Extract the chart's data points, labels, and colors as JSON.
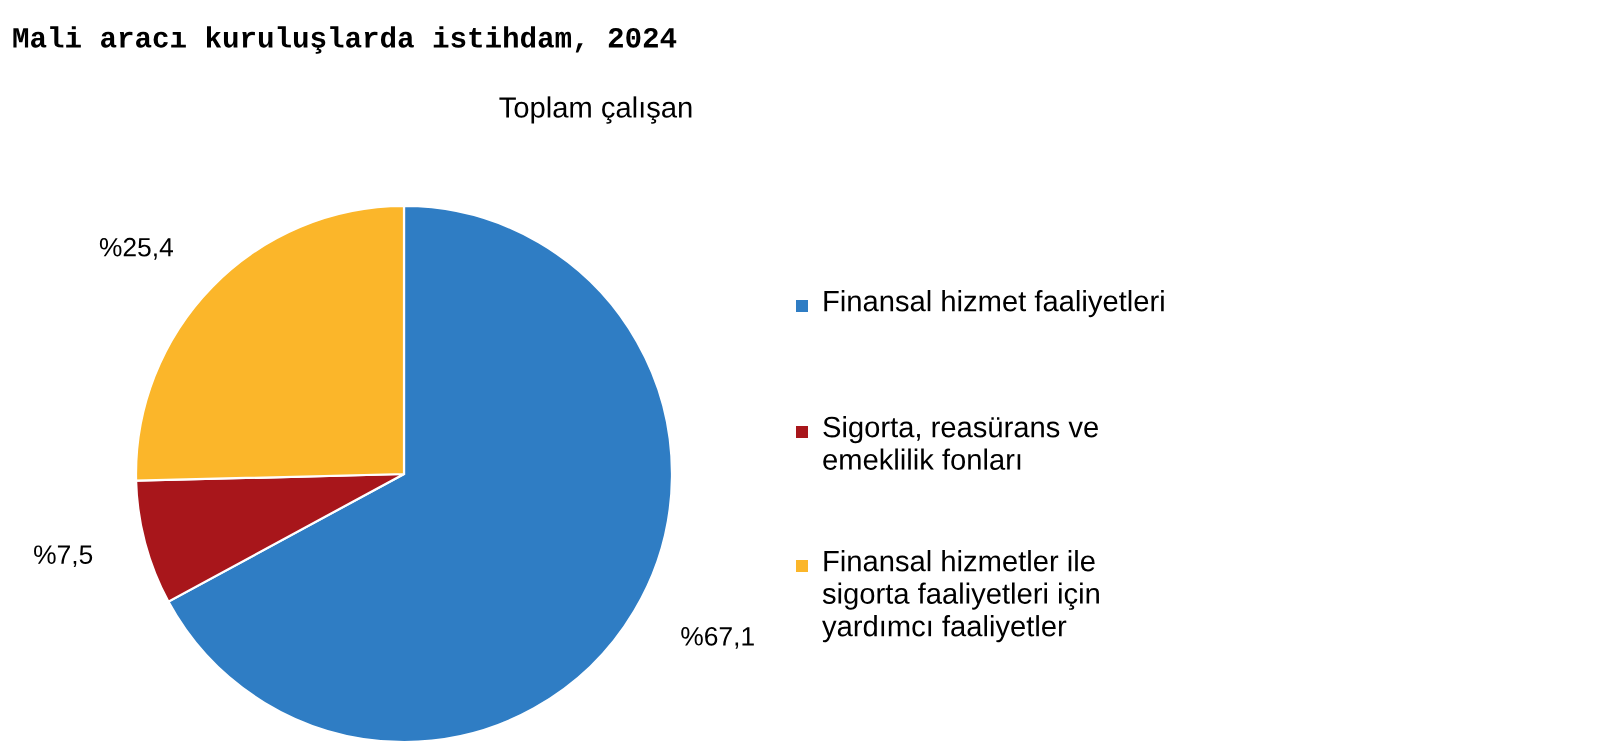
{
  "chart_data": {
    "type": "pie",
    "title": "Mali aracı kuruluşlarda istihdam, 2024",
    "subtitle": "Toplam çalışan",
    "categories": [
      "Finansal hizmet faaliyetleri",
      "Sigorta, reasürans ve emeklilik fonları",
      "Finansal hizmetler ile sigorta faaliyetleri için yardımcı faaliyetler"
    ],
    "values": [
      67.1,
      7.5,
      25.4
    ],
    "colors": [
      "#2f7dc4",
      "#a8161b",
      "#fbb62a"
    ],
    "value_labels": [
      "%67,1",
      "%7,5",
      "%25,4"
    ],
    "legend": "right"
  }
}
